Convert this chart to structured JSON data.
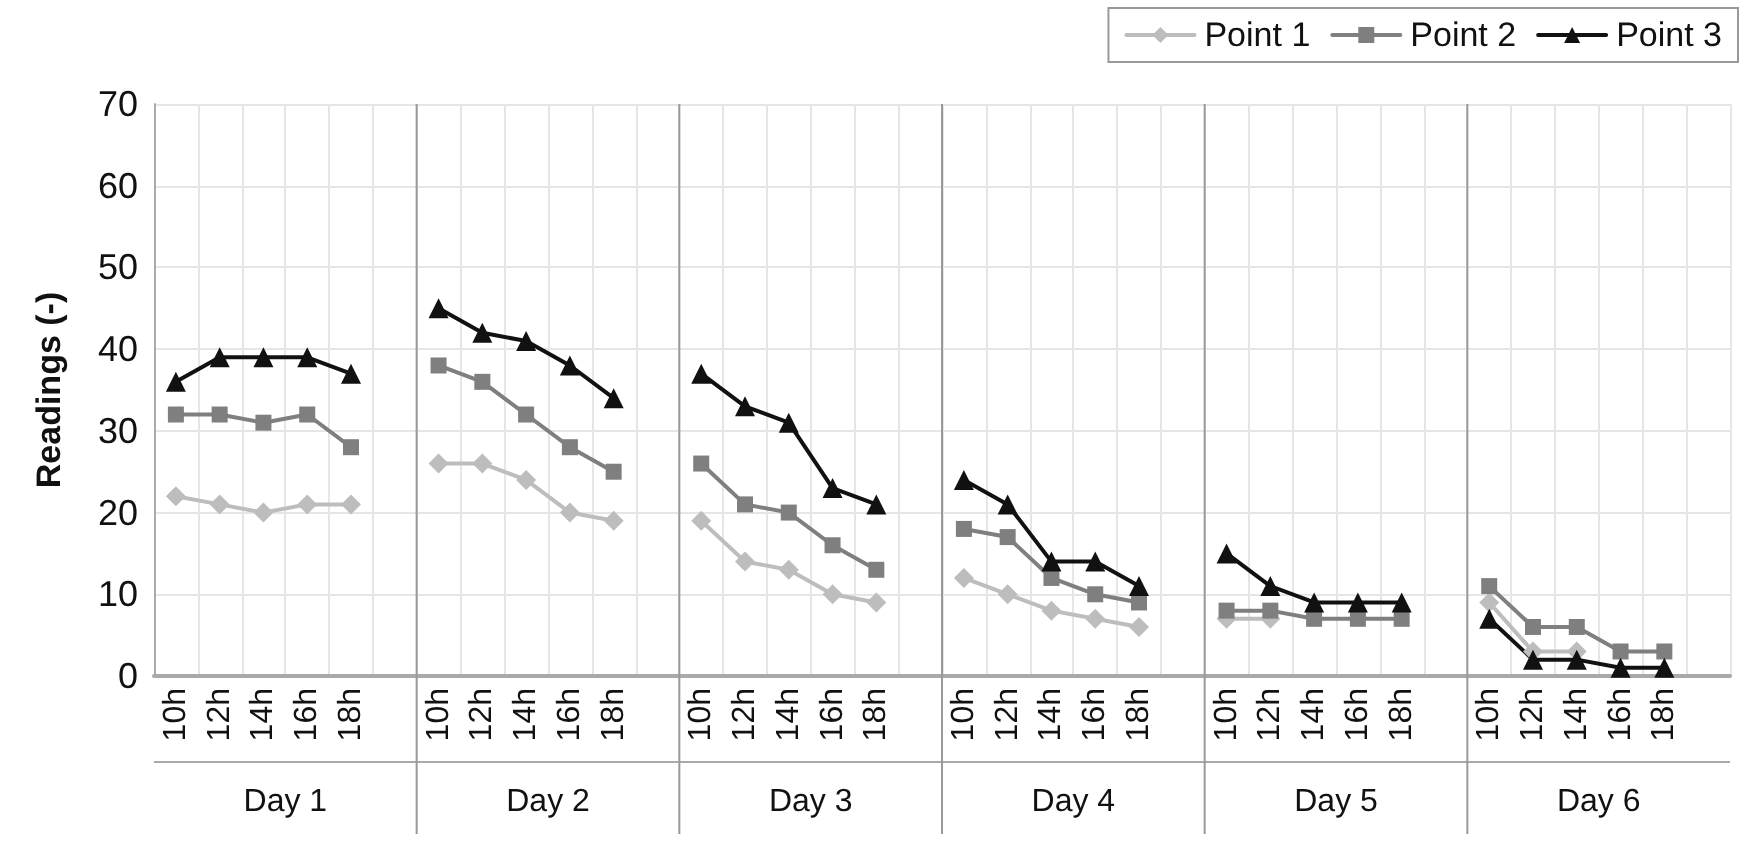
{
  "chart_data": {
    "type": "line",
    "ylabel": "Readings (-)",
    "categories": [
      "10h",
      "12h",
      "14h",
      "16h",
      "18h",
      null,
      "10h",
      "12h",
      "14h",
      "16h",
      "18h",
      null,
      "10h",
      "12h",
      "14h",
      "16h",
      "18h",
      null,
      "10h",
      "12h",
      "14h",
      "16h",
      "18h",
      null,
      "10h",
      "12h",
      "14h",
      "16h",
      "18h",
      null,
      "10h",
      "12h",
      "14h",
      "16h",
      "18h",
      null
    ],
    "series": [
      {
        "name": "Point 1",
        "color": "#bdbdbd",
        "marker": "diamond",
        "values": [
          22,
          21,
          20,
          21,
          21,
          null,
          26,
          26,
          24,
          20,
          19,
          null,
          19,
          14,
          13,
          10,
          9,
          null,
          12,
          10,
          8,
          7,
          6,
          null,
          7,
          7,
          null,
          null,
          null,
          null,
          9,
          3,
          3,
          null,
          null,
          null
        ]
      },
      {
        "name": "Point 2",
        "color": "#7f7f7f",
        "marker": "square",
        "values": [
          32,
          32,
          31,
          32,
          28,
          null,
          38,
          36,
          32,
          28,
          25,
          null,
          26,
          21,
          20,
          16,
          13,
          null,
          18,
          17,
          12,
          10,
          9,
          null,
          8,
          8,
          7,
          7,
          7,
          null,
          11,
          6,
          6,
          3,
          3,
          null
        ]
      },
      {
        "name": "Point 3",
        "color": "#111111",
        "marker": "triangle",
        "values": [
          36,
          39,
          39,
          39,
          37,
          null,
          45,
          42,
          41,
          38,
          34,
          null,
          37,
          33,
          31,
          23,
          21,
          null,
          24,
          21,
          14,
          14,
          11,
          null,
          15,
          11,
          9,
          9,
          9,
          null,
          7,
          2,
          2,
          1,
          1,
          null
        ]
      }
    ],
    "annotations": [
      "Day 1",
      "Day 2",
      "Day 3",
      "Day 4",
      "Day 5",
      "Day 6"
    ],
    "ylim": [
      0,
      70
    ],
    "yticks": [
      0,
      10,
      20,
      30,
      40,
      50,
      60,
      70
    ],
    "grid": true,
    "legend": "top right",
    "line_style": "solid"
  }
}
